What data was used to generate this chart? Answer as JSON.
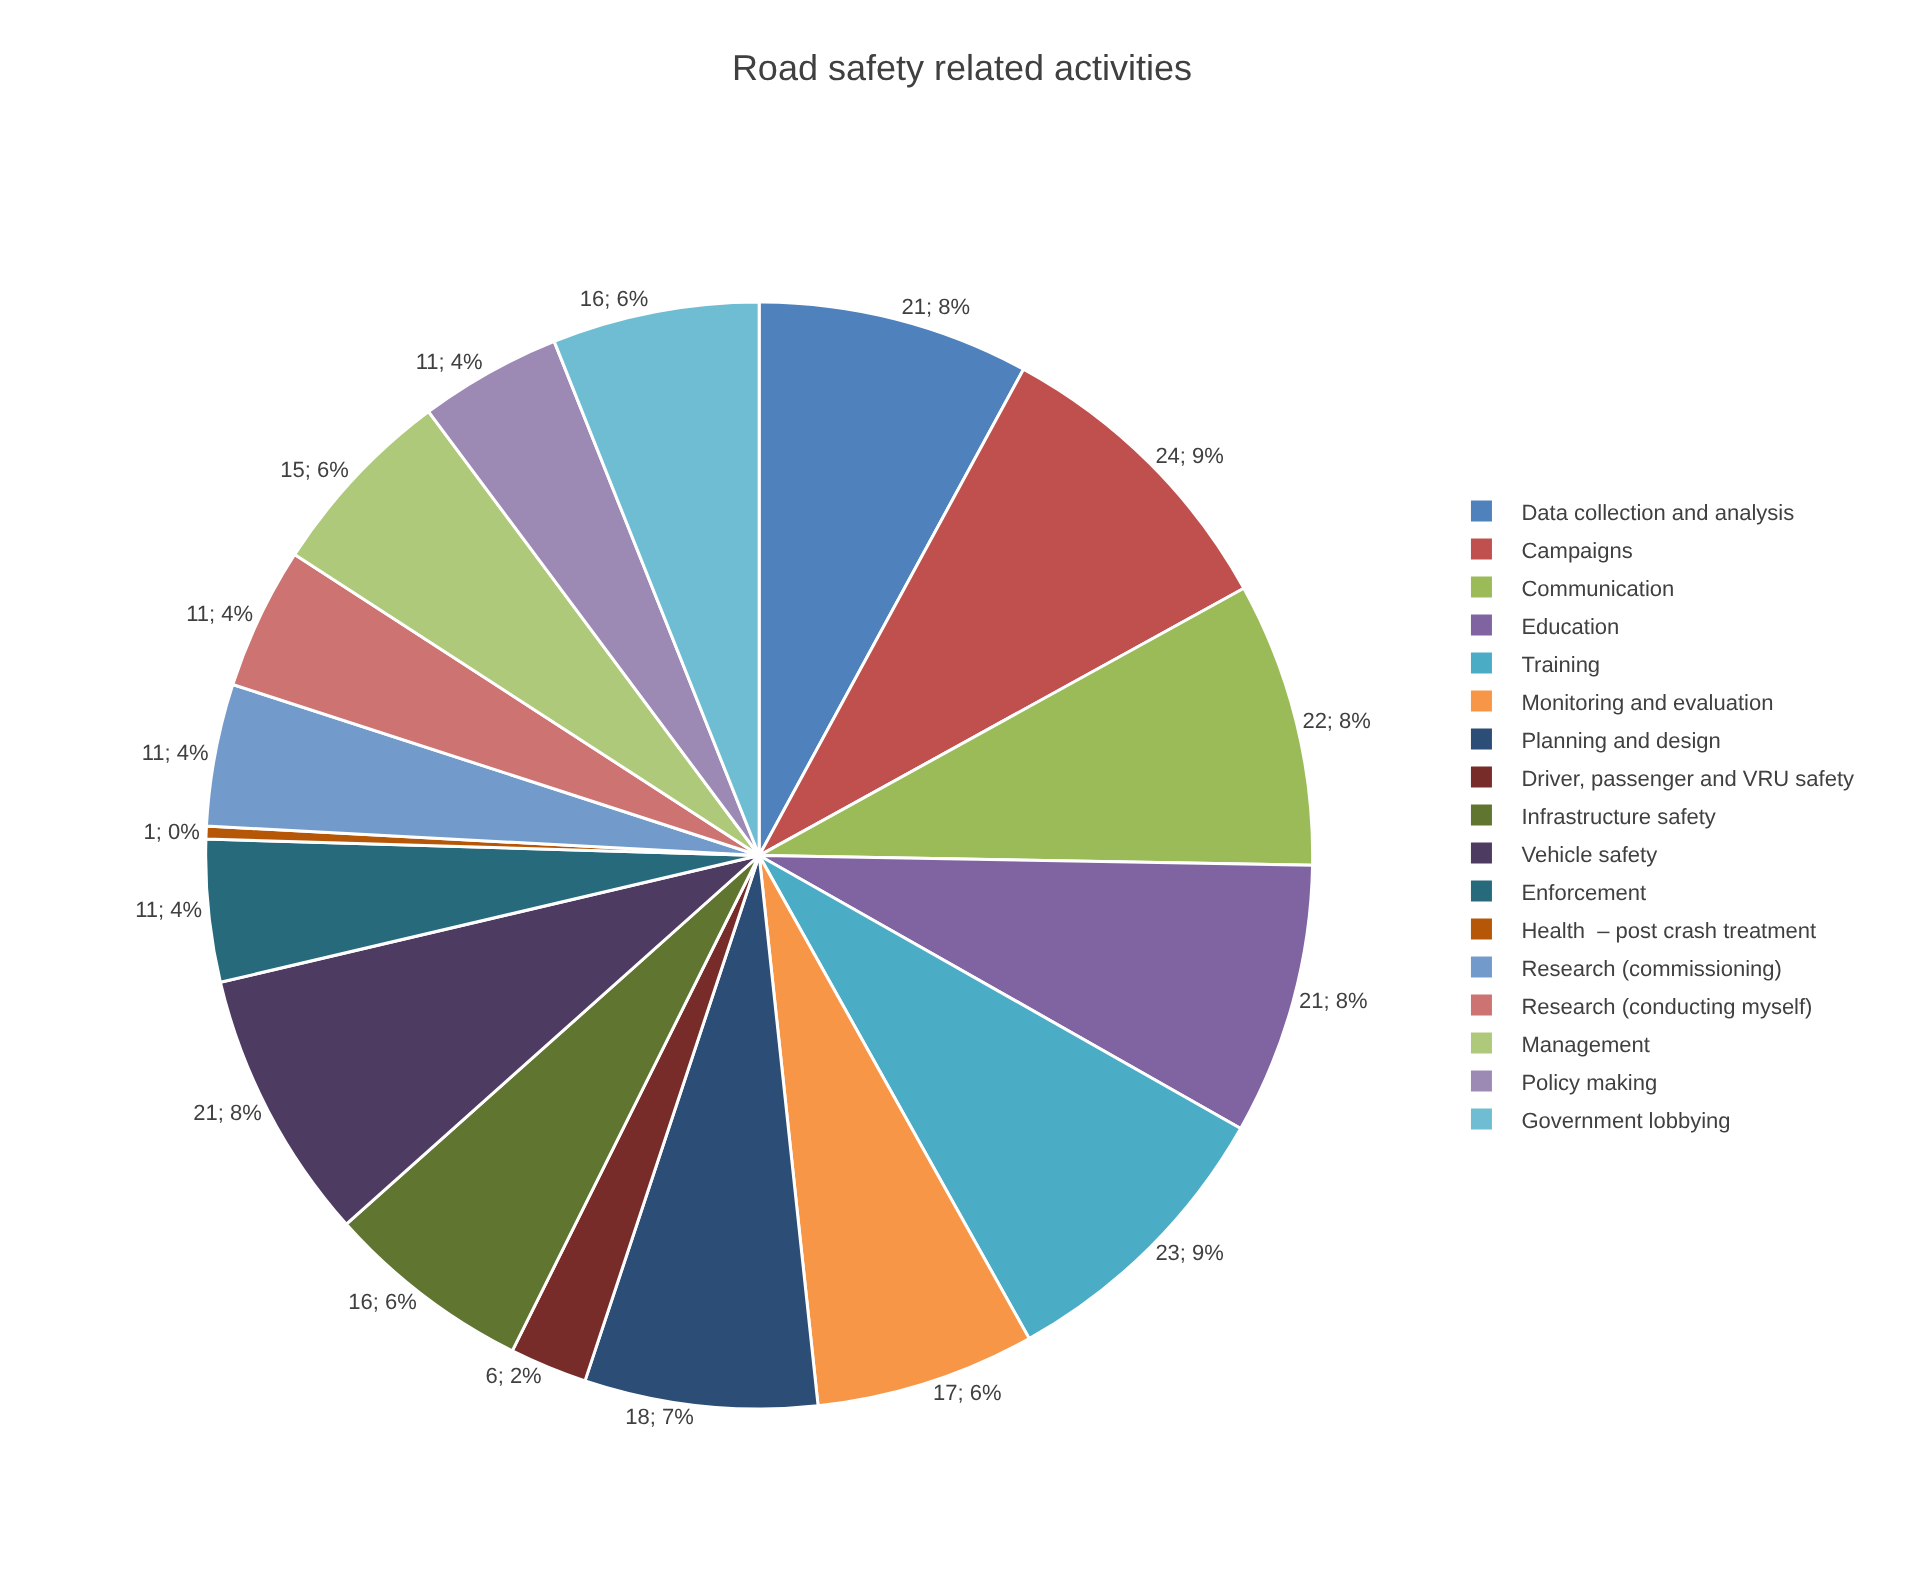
{
  "chart_data": {
    "type": "pie",
    "title": "Road safety related activities",
    "categories": [
      "Data collection and analysis",
      "Campaigns",
      "Communication",
      "Education",
      "Training",
      "Monitoring and evaluation",
      "Planning and design",
      "Driver, passenger and VRU safety",
      "Infrastructure safety",
      "Vehicle safety",
      "Enforcement",
      "Health  – post crash treatment",
      "Research (commissioning)",
      "Research (conducting myself)",
      "Management",
      "Policy making",
      "Government lobbying"
    ],
    "values": [
      21,
      24,
      22,
      21,
      23,
      17,
      18,
      6,
      16,
      21,
      11,
      1,
      11,
      11,
      15,
      11,
      16
    ],
    "value_labels": [
      "21; 8%",
      "24; 9%",
      "22; 8%",
      "21; 8%",
      "23; 9%",
      "17; 6%",
      "18; 7%",
      "6; 2%",
      "16; 6%",
      "21; 8%",
      "11; 4%",
      "1; 0%",
      "11; 4%",
      "11; 4%",
      "15; 6%",
      "11; 4%",
      "16; 6%"
    ],
    "colors": [
      "#4f81bd",
      "#c0504d",
      "#9bbb59",
      "#8064a2",
      "#4bacc6",
      "#f79646",
      "#2c4d75",
      "#772c2a",
      "#5f7530",
      "#4d3b62",
      "#276a7c",
      "#b65708",
      "#729aca",
      "#cd7371",
      "#afc97a",
      "#9c8ab4",
      "#6fbdd3"
    ],
    "legend": "right"
  }
}
